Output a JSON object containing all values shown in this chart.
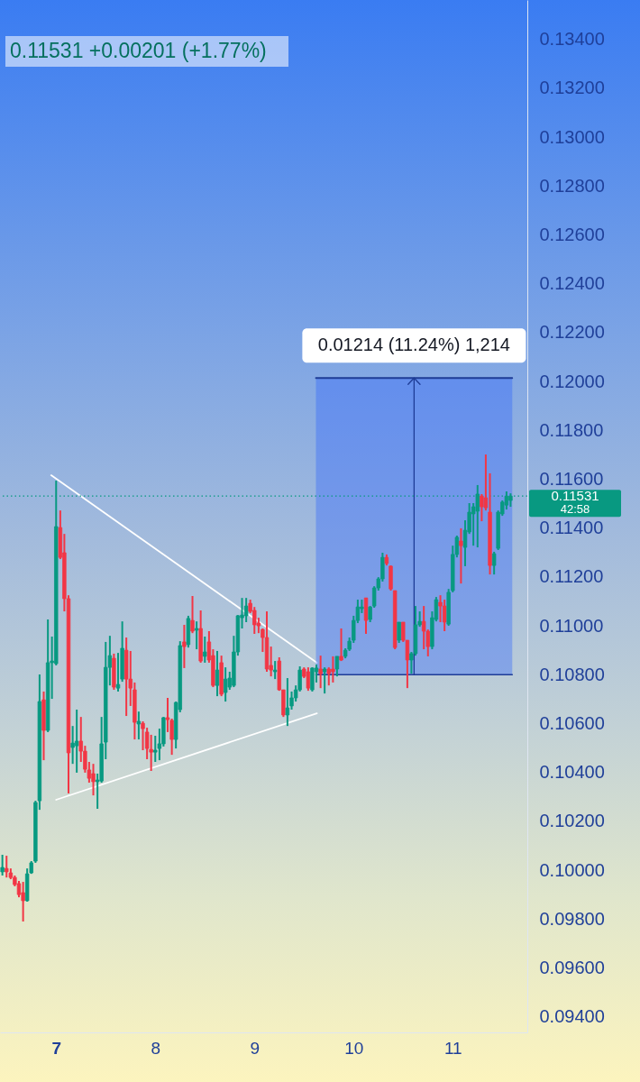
{
  "chart_data": {
    "type": "candlestick",
    "subtitle": "0.11531 +0.00201 (+1.77%)",
    "x": [
      6.458,
      6.5,
      6.542,
      6.583,
      6.625,
      6.667,
      6.708,
      6.75,
      6.792,
      6.833,
      6.875,
      6.917,
      6.958,
      7,
      7.042,
      7.083,
      7.125,
      7.167,
      7.208,
      7.25,
      7.292,
      7.333,
      7.375,
      7.417,
      7.458,
      7.5,
      7.542,
      7.583,
      7.625,
      7.667,
      7.708,
      7.75,
      7.792,
      7.833,
      7.875,
      7.917,
      7.958,
      8,
      8.042,
      8.083,
      8.125,
      8.167,
      8.208,
      8.25,
      8.292,
      8.333,
      8.375,
      8.417,
      8.458,
      8.5,
      8.542,
      8.583,
      8.625,
      8.667,
      8.708,
      8.75,
      8.792,
      8.833,
      8.875,
      8.917,
      8.958,
      9,
      9.042,
      9.083,
      9.125,
      9.167,
      9.208,
      9.25,
      9.292,
      9.333,
      9.375,
      9.417,
      9.458,
      9.5,
      9.542,
      9.583,
      9.625,
      9.667,
      9.708,
      9.75,
      9.792,
      9.833,
      9.875,
      9.917,
      9.958,
      10,
      10.042,
      10.083,
      10.125,
      10.167,
      10.208,
      10.25,
      10.292,
      10.333,
      10.375,
      10.417,
      10.458,
      10.5,
      10.542,
      10.583,
      10.625,
      10.667,
      10.708,
      10.75,
      10.792,
      10.833,
      10.875,
      10.917,
      10.958,
      11,
      11.042,
      11.083,
      11.125,
      11.167,
      11.208,
      11.25,
      11.292,
      11.333,
      11.375,
      11.417,
      11.458,
      11.5,
      11.542,
      11.583
    ],
    "ohlc": [
      [
        0.09993,
        0.10063,
        0.09978,
        0.10011
      ],
      [
        0.10007,
        0.10059,
        0.0997,
        0.09993
      ],
      [
        0.09989,
        0.10007,
        0.09963,
        0.0997
      ],
      [
        0.0997,
        0.09978,
        0.09934,
        0.09941
      ],
      [
        0.09945,
        0.09956,
        0.09889,
        0.099
      ],
      [
        0.09908,
        0.09952,
        0.0979,
        0.09875
      ],
      [
        0.09875,
        0.10007,
        0.09871,
        0.09985
      ],
      [
        0.09989,
        0.10037,
        0.09985,
        0.1003
      ],
      [
        0.10037,
        0.10284,
        0.1003,
        0.10277
      ],
      [
        0.10284,
        0.10801,
        0.10247,
        0.1069
      ],
      [
        0.10697,
        0.10731,
        0.1045,
        0.10572
      ],
      [
        0.10572,
        0.11026,
        0.10565,
        0.10849
      ],
      [
        0.10849,
        0.10956,
        0.10701,
        0.10856
      ],
      [
        0.10845,
        0.11594,
        0.10838,
        0.11406
      ],
      [
        0.11402,
        0.11472,
        0.11273,
        0.1128
      ],
      [
        0.11299,
        0.11376,
        0.11059,
        0.11111
      ],
      [
        0.11111,
        0.11125,
        0.10314,
        0.1048
      ],
      [
        0.10502,
        0.1059,
        0.10435,
        0.1052
      ],
      [
        0.10509,
        0.10657,
        0.10399,
        0.10528
      ],
      [
        0.10528,
        0.10627,
        0.10443,
        0.10487
      ],
      [
        0.10487,
        0.10509,
        0.10399,
        0.10413
      ],
      [
        0.1041,
        0.10443,
        0.10358,
        0.10376
      ],
      [
        0.10395,
        0.10435,
        0.10306,
        0.10362
      ],
      [
        0.10362,
        0.10395,
        0.10251,
        0.10369
      ],
      [
        0.10365,
        0.10627,
        0.10358,
        0.10517
      ],
      [
        0.10524,
        0.10934,
        0.10454,
        0.1083
      ],
      [
        0.1083,
        0.10959,
        0.10756,
        0.10878
      ],
      [
        0.10867,
        0.10886,
        0.10738,
        0.10749
      ],
      [
        0.10745,
        0.10889,
        0.10731,
        0.1076
      ],
      [
        0.10782,
        0.11018,
        0.10771,
        0.10908
      ],
      [
        0.109,
        0.10952,
        0.10631,
        0.10782
      ],
      [
        0.10782,
        0.10897,
        0.10672,
        0.10745
      ],
      [
        0.10738,
        0.10768,
        0.10535,
        0.10605
      ],
      [
        0.10598,
        0.10649,
        0.10535,
        0.10609
      ],
      [
        0.10601,
        0.10609,
        0.10491,
        0.10579
      ],
      [
        0.10565,
        0.10583,
        0.10454,
        0.10498
      ],
      [
        0.10494,
        0.10554,
        0.10406,
        0.10483
      ],
      [
        0.10483,
        0.1055,
        0.10443,
        0.10491
      ],
      [
        0.10498,
        0.10579,
        0.1045,
        0.10517
      ],
      [
        0.10517,
        0.10627,
        0.10506,
        0.10624
      ],
      [
        0.10624,
        0.10705,
        0.10565,
        0.10616
      ],
      [
        0.10613,
        0.1062,
        0.10472,
        0.10535
      ],
      [
        0.10535,
        0.1069,
        0.10498,
        0.10686
      ],
      [
        0.10657,
        0.10937,
        0.10646,
        0.10919
      ],
      [
        0.10934,
        0.11004,
        0.10827,
        0.10915
      ],
      [
        0.10923,
        0.11041,
        0.10911,
        0.1103
      ],
      [
        0.11022,
        0.11122,
        0.1097,
        0.10978
      ],
      [
        0.10982,
        0.11018,
        0.10904,
        0.10989
      ],
      [
        0.10989,
        0.11063,
        0.10849,
        0.10856
      ],
      [
        0.10875,
        0.10956,
        0.10849,
        0.10893
      ],
      [
        0.10934,
        0.10978,
        0.10849,
        0.1086
      ],
      [
        0.10878,
        0.10904,
        0.10749,
        0.10756
      ],
      [
        0.10756,
        0.10897,
        0.10712,
        0.10819
      ],
      [
        0.10849,
        0.10878,
        0.10712,
        0.1072
      ],
      [
        0.10727,
        0.1083,
        0.1069,
        0.10782
      ],
      [
        0.10749,
        0.10812,
        0.10738,
        0.10786
      ],
      [
        0.10756,
        0.10959,
        0.10749,
        0.10893
      ],
      [
        0.10893,
        0.11044,
        0.10878,
        0.11041
      ],
      [
        0.11033,
        0.11114,
        0.10989,
        0.11044
      ],
      [
        0.11041,
        0.11114,
        0.11015,
        0.11081
      ],
      [
        0.11092,
        0.11107,
        0.11052,
        0.11059
      ],
      [
        0.11063,
        0.11077,
        0.10967,
        0.11004
      ],
      [
        0.11011,
        0.11033,
        0.1097,
        0.11
      ],
      [
        0.10985,
        0.10989,
        0.10893,
        0.10952
      ],
      [
        0.10952,
        0.11059,
        0.10812,
        0.10823
      ],
      [
        0.10838,
        0.10915,
        0.10793,
        0.10819
      ],
      [
        0.10812,
        0.10856,
        0.10782,
        0.10819
      ],
      [
        0.10856,
        0.10871,
        0.10734,
        0.10738
      ],
      [
        0.10738,
        0.10738,
        0.10627,
        0.10635
      ],
      [
        0.10635,
        0.10786,
        0.1059,
        0.10664
      ],
      [
        0.10672,
        0.10731,
        0.10657,
        0.10705
      ],
      [
        0.10705,
        0.10756,
        0.1069,
        0.10738
      ],
      [
        0.10738,
        0.10834,
        0.10731,
        0.10819
      ],
      [
        0.10823,
        0.1083,
        0.10786,
        0.10793
      ],
      [
        0.10812,
        0.1083,
        0.10734,
        0.10745
      ],
      [
        0.10738,
        0.1083,
        0.10731,
        0.10827
      ],
      [
        0.10812,
        0.10841,
        0.10768,
        0.10827
      ],
      [
        0.10823,
        0.10878,
        0.10745,
        0.10804
      ],
      [
        0.10812,
        0.1083,
        0.10723,
        0.10823
      ],
      [
        0.10823,
        0.1083,
        0.10756,
        0.10804
      ],
      [
        0.10823,
        0.10875,
        0.10768,
        0.10812
      ],
      [
        0.10823,
        0.10875,
        0.10793,
        0.10875
      ],
      [
        0.10875,
        0.10989,
        0.10856,
        0.1086
      ],
      [
        0.10875,
        0.10908,
        0.10867,
        0.109
      ],
      [
        0.10904,
        0.10952,
        0.10897,
        0.10937
      ],
      [
        0.10941,
        0.11041,
        0.1093,
        0.11022
      ],
      [
        0.11022,
        0.11107,
        0.11011,
        0.11077
      ],
      [
        0.1107,
        0.11107,
        0.11052,
        0.11077
      ],
      [
        0.11114,
        0.11114,
        0.10967,
        0.11022
      ],
      [
        0.11026,
        0.11081,
        0.11015,
        0.11077
      ],
      [
        0.11081,
        0.11162,
        0.11074,
        0.11155
      ],
      [
        0.11155,
        0.11199,
        0.11144,
        0.11192
      ],
      [
        0.11192,
        0.11299,
        0.11181,
        0.1128
      ],
      [
        0.1128,
        0.11292,
        0.11247,
        0.11255
      ],
      [
        0.11244,
        0.11247,
        0.11144,
        0.11151
      ],
      [
        0.11144,
        0.11144,
        0.10904,
        0.10911
      ],
      [
        0.10941,
        0.11015,
        0.1093,
        0.11015
      ],
      [
        0.11015,
        0.11015,
        0.10934,
        0.10941
      ],
      [
        0.10941,
        0.10941,
        0.10745,
        0.1086
      ],
      [
        0.1086,
        0.10893,
        0.10804,
        0.10886
      ],
      [
        0.10886,
        0.11081,
        0.10878,
        0.11004
      ],
      [
        0.11004,
        0.11059,
        0.10996,
        0.11018
      ],
      [
        0.11018,
        0.11081,
        0.10904,
        0.10978
      ],
      [
        0.10978,
        0.10985,
        0.10875,
        0.10915
      ],
      [
        0.10915,
        0.11059,
        0.10904,
        0.11033
      ],
      [
        0.11026,
        0.11118,
        0.11018,
        0.11107
      ],
      [
        0.11096,
        0.11125,
        0.11015,
        0.11081
      ],
      [
        0.11081,
        0.11107,
        0.10978,
        0.11015
      ],
      [
        0.11007,
        0.11151,
        0.11,
        0.11137
      ],
      [
        0.11144,
        0.11328,
        0.11137,
        0.11292
      ],
      [
        0.11292,
        0.11369,
        0.1128,
        0.11362
      ],
      [
        0.11347,
        0.11399,
        0.11173,
        0.11328
      ],
      [
        0.11321,
        0.11432,
        0.11244,
        0.11391
      ],
      [
        0.11384,
        0.11502,
        0.11376,
        0.11465
      ],
      [
        0.11458,
        0.11502,
        0.11328,
        0.11487
      ],
      [
        0.11469,
        0.11576,
        0.11321,
        0.11539
      ],
      [
        0.11531,
        0.11539,
        0.11428,
        0.11487
      ],
      [
        0.11524,
        0.11701,
        0.11472,
        0.11483
      ],
      [
        0.11465,
        0.11624,
        0.1121,
        0.11247
      ],
      [
        0.11247,
        0.11303,
        0.1121,
        0.11295
      ],
      [
        0.11317,
        0.11472,
        0.1131,
        0.11465
      ],
      [
        0.11458,
        0.11513,
        0.1145,
        0.11506
      ],
      [
        0.11494,
        0.1155,
        0.11476,
        0.11531
      ],
      [
        0.11513,
        0.11542,
        0.11487,
        0.11531
      ]
    ],
    "colors": [
      "#089981",
      "#f23645",
      "#f23645",
      "#f23645",
      "#f23645",
      "#f23645",
      "#089981",
      "#089981",
      "#089981",
      "#089981",
      "#f23645",
      "#089981",
      "#089981",
      "#089981",
      "#f23645",
      "#f23645",
      "#f23645",
      "#089981",
      "#089981",
      "#f23645",
      "#f23645",
      "#f23645",
      "#f23645",
      "#089981",
      "#089981",
      "#089981",
      "#089981",
      "#f23645",
      "#089981",
      "#089981",
      "#f23645",
      "#f23645",
      "#f23645",
      "#089981",
      "#f23645",
      "#f23645",
      "#f23645",
      "#089981",
      "#089981",
      "#089981",
      "#f23645",
      "#f23645",
      "#089981",
      "#089981",
      "#f23645",
      "#089981",
      "#f23645",
      "#089981",
      "#f23645",
      "#089981",
      "#f23645",
      "#f23645",
      "#089981",
      "#f23645",
      "#089981",
      "#089981",
      "#089981",
      "#089981",
      "#089981",
      "#089981",
      "#f23645",
      "#f23645",
      "#f23645",
      "#f23645",
      "#f23645",
      "#f23645",
      "#089981",
      "#f23645",
      "#f23645",
      "#089981",
      "#089981",
      "#089981",
      "#089981",
      "#f23645",
      "#f23645",
      "#089981",
      "#089981",
      "#f23645",
      "#089981",
      "#f23645",
      "#f23645",
      "#089981",
      "#f23645",
      "#089981",
      "#089981",
      "#089981",
      "#089981",
      "#089981",
      "#f23645",
      "#089981",
      "#089981",
      "#089981",
      "#089981",
      "#f23645",
      "#f23645",
      "#f23645",
      "#089981",
      "#f23645",
      "#f23645",
      "#089981",
      "#089981",
      "#089981",
      "#f23645",
      "#f23645",
      "#089981",
      "#089981",
      "#f23645",
      "#f23645",
      "#089981",
      "#089981",
      "#089981",
      "#f23645",
      "#089981",
      "#089981",
      "#089981",
      "#089981",
      "#f23645",
      "#f23645",
      "#f23645",
      "#089981",
      "#089981",
      "#089981",
      "#089981",
      "#089981"
    ],
    "series": [
      {
        "type": "line",
        "x": [
          6.95,
          9.63
        ],
        "values": [
          0.11616,
          0.10849
        ],
        "color": "#ffffff"
      },
      {
        "type": "line",
        "x": [
          7.0,
          9.63
        ],
        "values": [
          0.10288,
          0.10642
        ],
        "color": "#ffffff"
      },
      {
        "type": "line",
        "x": [
          9.62,
          11.6
        ],
        "values": [
          0.108,
          0.108
        ],
        "lower": [
          0.108,
          0.108
        ],
        "upper": [
          0.12014,
          0.12014
        ],
        "color": "#1e3c96"
      },
      {
        "type": "line",
        "x": [
          9.62,
          11.6
        ],
        "values": [
          0.12014,
          0.12014
        ],
        "color": "#1e3c96"
      },
      {
        "type": "line",
        "x": [
          10.61,
          10.61,
          10.55,
          10.61,
          10.67
        ],
        "values": [
          0.108,
          0.12014,
          0.11988,
          0.12014,
          0.11988
        ],
        "color": "#1e3c96"
      }
    ],
    "ref_lines": [
      {
        "axis": "y",
        "value": 0.11531,
        "label": "0.11531",
        "line_style": "dotted",
        "color": "#089981"
      }
    ],
    "annotations": [
      "42:58",
      {
        "text": "0.01214 (11.24%) 1,214",
        "x": 10.61,
        "y": 0.12014
      }
    ],
    "xlim": [
      6.434,
      11.752
    ],
    "xticks": [
      7,
      8,
      9,
      10,
      11
    ],
    "ylim": [
      0.09336,
      0.13561
    ],
    "yticks": [
      {
        "value": 0.094,
        "label": "0.09400"
      },
      {
        "value": 0.096,
        "label": "0.09600"
      },
      {
        "value": 0.098,
        "label": "0.09800"
      },
      {
        "value": 0.1,
        "label": "0.10000"
      },
      {
        "value": 0.102,
        "label": "0.10200"
      },
      {
        "value": 0.104,
        "label": "0.10400"
      },
      {
        "value": 0.106,
        "label": "0.10600"
      },
      {
        "value": 0.108,
        "label": "0.10800"
      },
      {
        "value": 0.11,
        "label": "0.11000"
      },
      {
        "value": 0.112,
        "label": "0.11200"
      },
      {
        "value": 0.114,
        "label": "0.11400"
      },
      {
        "value": 0.116,
        "label": "0.11600"
      },
      {
        "value": 0.118,
        "label": "0.11800"
      },
      {
        "value": 0.12,
        "label": "0.12000"
      },
      {
        "value": 0.122,
        "label": "0.12200"
      },
      {
        "value": 0.124,
        "label": "0.12400"
      },
      {
        "value": 0.126,
        "label": "0.12600"
      },
      {
        "value": 0.128,
        "label": "0.12800"
      },
      {
        "value": 0.13,
        "label": "0.13000"
      },
      {
        "value": 0.132,
        "label": "0.13200"
      },
      {
        "value": 0.134,
        "label": "0.13400"
      }
    ]
  }
}
